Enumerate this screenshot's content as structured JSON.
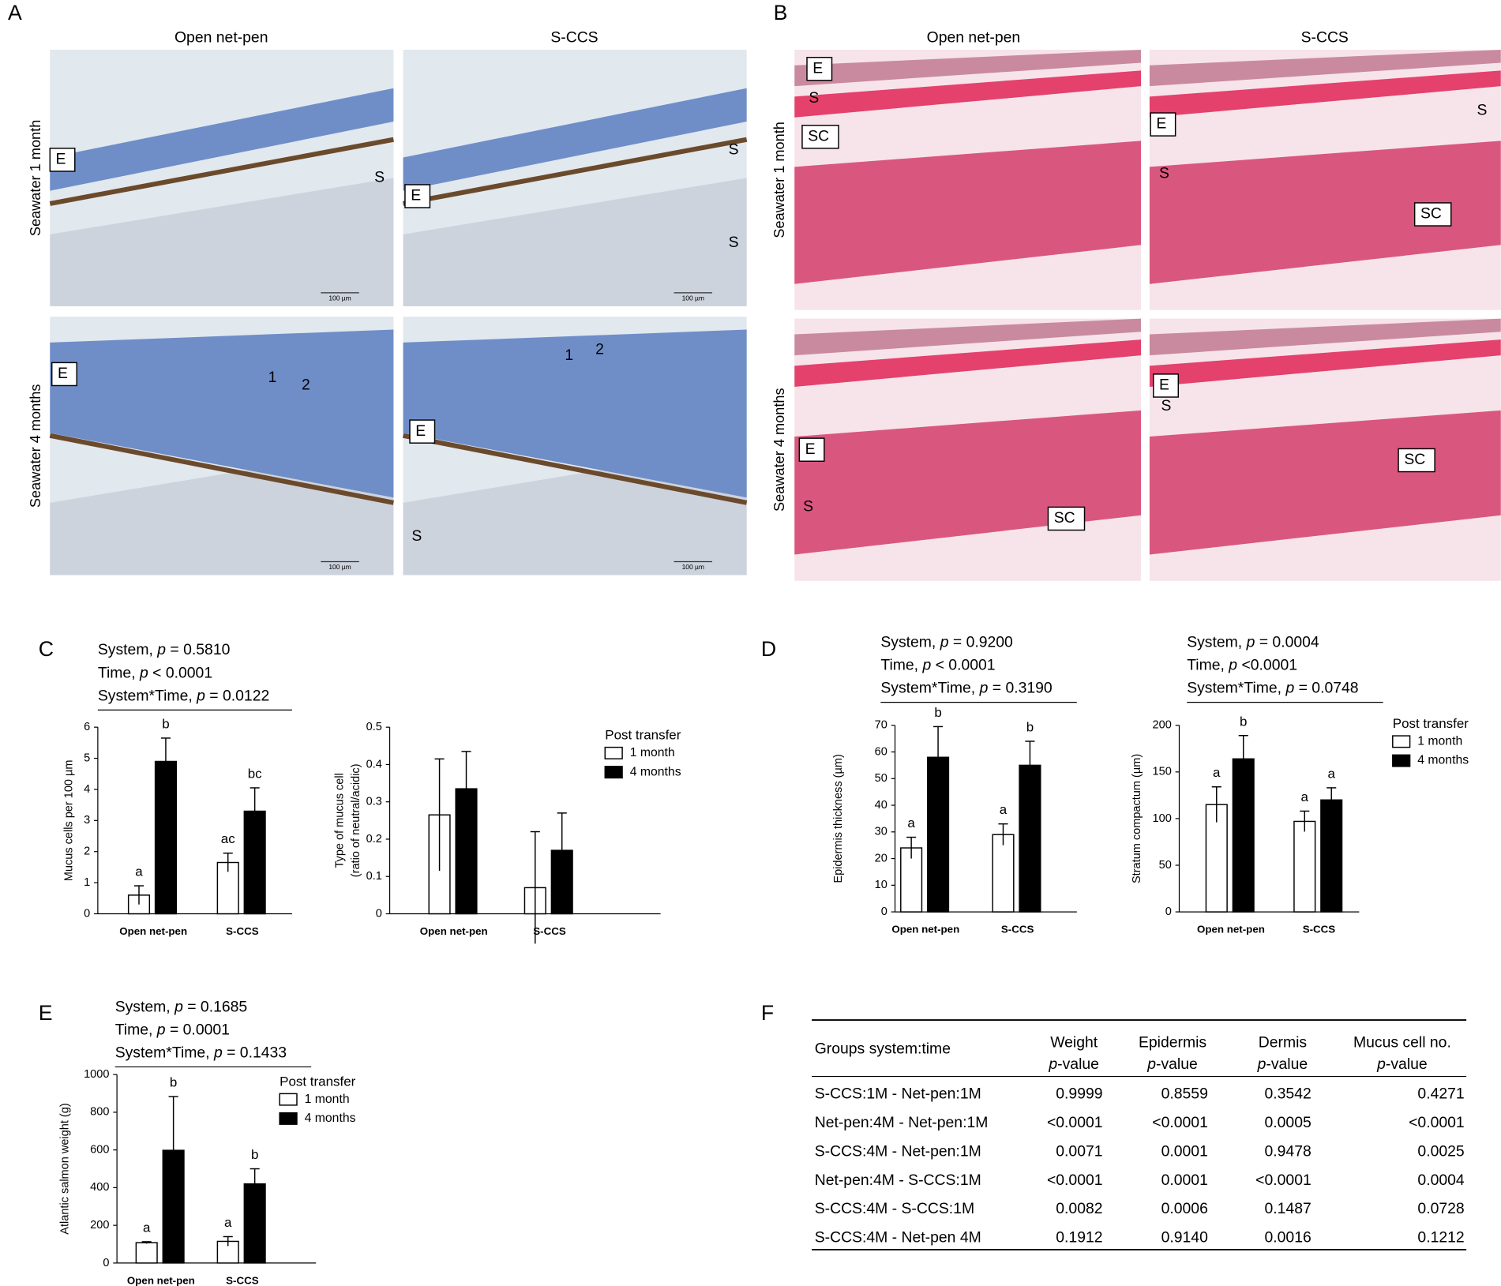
{
  "panel_labels": [
    "A",
    "B",
    "C",
    "D",
    "E",
    "F"
  ],
  "micrographs": {
    "A": {
      "columns": [
        "Open net-pen",
        "S-CCS"
      ],
      "rows": [
        "Seawater 1 month",
        "Seawater 4 months"
      ],
      "images": [
        {
          "labels": [
            "E",
            "S"
          ],
          "scale_bar": "100 µm"
        },
        {
          "labels": [
            "E",
            "S",
            "S"
          ],
          "scale_bar": "100 µm"
        },
        {
          "labels": [
            "E",
            "1",
            "2"
          ],
          "scale_bar": "100 µm"
        },
        {
          "labels": [
            "E",
            "1",
            "2",
            "S"
          ],
          "scale_bar": "100 µm"
        }
      ]
    },
    "B": {
      "columns": [
        "Open net-pen",
        "S-CCS"
      ],
      "rows": [
        "Seawater 1 month",
        "Seawater 4 months"
      ],
      "images": [
        {
          "labels": [
            "E",
            "S",
            "SC"
          ]
        },
        {
          "labels": [
            "E",
            "S",
            "S",
            "SC"
          ]
        },
        {
          "labels": [
            "E",
            "S",
            "SC"
          ]
        },
        {
          "labels": [
            "E",
            "S",
            "SC"
          ]
        }
      ]
    }
  },
  "chart_data": [
    {
      "type": "bar",
      "ylabel": [
        "Mucus cells per 100 µm"
      ],
      "categories": [
        "Open net-pen",
        "S-CCS"
      ],
      "stats": [
        {
          "pre": "System, ",
          "p": "p",
          "post": " = 0.5810"
        },
        {
          "pre": "Time, ",
          "p": "p",
          "post": " < 0.0001"
        },
        {
          "pre": "System*Time, ",
          "p": "p",
          "post": " = 0.0122"
        }
      ],
      "series": [
        {
          "color": "#ffffff",
          "values": [
            0.6,
            1.65
          ],
          "errors": [
            0.3,
            0.3
          ],
          "letters": [
            "a",
            "ac"
          ]
        },
        {
          "color": "#000000",
          "values": [
            4.9,
            3.3
          ],
          "errors": [
            0.75,
            0.75
          ],
          "letters": [
            "b",
            "bc"
          ]
        }
      ],
      "ylim": [
        0,
        6
      ],
      "yticks": [
        0,
        1,
        2,
        3,
        4,
        5,
        6
      ]
    },
    {
      "type": "bar",
      "ylabel": [
        "Type of mucus cell",
        "(ratio of neutral/acidic)"
      ],
      "categories": [
        "Open net-pen",
        "S-CCS"
      ],
      "legend_title": "Post transfer",
      "legend": "right",
      "series": [
        {
          "name": "1 month",
          "color": "#ffffff",
          "values": [
            0.265,
            0.07
          ],
          "errors": [
            0.15,
            0.15
          ]
        },
        {
          "name": "4 months",
          "color": "#000000",
          "values": [
            0.335,
            0.17
          ],
          "errors": [
            0.1,
            0.1
          ]
        }
      ],
      "ylim": [
        0,
        0.5
      ],
      "yticks": [
        0,
        0.1,
        0.2,
        0.3,
        0.4,
        0.5
      ]
    },
    {
      "type": "bar",
      "ylabel": [
        "Epidermis thickness  (µm)"
      ],
      "categories": [
        "Open net-pen",
        "S-CCS"
      ],
      "stats": [
        {
          "pre": "System, ",
          "p": "p",
          "post": " = 0.9200"
        },
        {
          "pre": "Time, ",
          "p": "p",
          "post": " < 0.0001"
        },
        {
          "pre": "System*Time, ",
          "p": "p",
          "post": " = 0.3190"
        }
      ],
      "series": [
        {
          "color": "#ffffff",
          "values": [
            24,
            29
          ],
          "errors": [
            4,
            4
          ],
          "letters": [
            "a",
            "a"
          ]
        },
        {
          "color": "#000000",
          "values": [
            58,
            55
          ],
          "errors": [
            11.5,
            9
          ],
          "letters": [
            "b",
            "b"
          ]
        }
      ],
      "ylim": [
        0,
        70
      ],
      "yticks": [
        0,
        10,
        20,
        30,
        40,
        50,
        60,
        70
      ]
    },
    {
      "type": "bar",
      "ylabel": [
        "Stratum compactum  (µm)"
      ],
      "categories": [
        "Open net-pen",
        "S-CCS"
      ],
      "stats": [
        {
          "pre": "System, ",
          "p": "p",
          "post": " = 0.0004"
        },
        {
          "pre": "Time, ",
          "p": "p",
          "post": " <0.0001"
        },
        {
          "pre": "System*Time, ",
          "p": "p",
          "post": " = 0.0748"
        }
      ],
      "legend_title": "Post transfer",
      "legend": "right",
      "series": [
        {
          "name": "1 month",
          "color": "#ffffff",
          "values": [
            115,
            97
          ],
          "errors": [
            19,
            11
          ],
          "letters": [
            "a",
            "a"
          ]
        },
        {
          "name": "4 months",
          "color": "#000000",
          "values": [
            164,
            120
          ],
          "errors": [
            25,
            13
          ],
          "letters": [
            "b",
            "a"
          ]
        }
      ],
      "ylim": [
        0,
        200
      ],
      "yticks": [
        0,
        50,
        100,
        150,
        200
      ]
    },
    {
      "type": "bar",
      "ylabel": [
        "Atlantic salmon weight  (g)"
      ],
      "categories": [
        "Open net-pen",
        "S-CCS"
      ],
      "stats": [
        {
          "pre": "System, ",
          "p": "p",
          "post": " = 0.1685"
        },
        {
          "pre": "Time, ",
          "p": "p",
          "post": " = 0.0001"
        },
        {
          "pre": "System*Time, ",
          "p": "p",
          "post": " = 0.1433"
        }
      ],
      "legend_title": "Post transfer",
      "legend": "right",
      "series": [
        {
          "name": "1 month",
          "color": "#ffffff",
          "values": [
            108,
            115
          ],
          "errors": [
            5,
            25
          ],
          "letters": [
            "a",
            "a"
          ]
        },
        {
          "name": "4 months",
          "color": "#000000",
          "values": [
            598,
            420
          ],
          "errors": [
            285,
            80
          ],
          "letters": [
            "b",
            "b"
          ]
        }
      ],
      "ylim": [
        0,
        1000
      ],
      "yticks": [
        0,
        200,
        400,
        600,
        800,
        1000
      ]
    }
  ],
  "table": {
    "columns": [
      {
        "title": "Groups system:time"
      },
      {
        "title": "Weight",
        "p": "p",
        "suffix": "-value"
      },
      {
        "title": "Epidermis",
        "p": "p",
        "suffix": "-value"
      },
      {
        "title": "Dermis",
        "p": "p",
        "suffix": "-value"
      },
      {
        "title": "Mucus cell no.",
        "p": "p",
        "suffix": "-value"
      }
    ],
    "rows": [
      [
        "S-CCS:1M - Net-pen:1M",
        "0.9999",
        "0.8559",
        "0.3542",
        "0.4271"
      ],
      [
        "Net-pen:4M - Net-pen:1M",
        "<0.0001",
        "<0.0001",
        "0.0005",
        "<0.0001"
      ],
      [
        "S-CCS:4M - Net-pen:1M",
        "0.0071",
        "0.0001",
        "0.9478",
        "0.0025"
      ],
      [
        "Net-pen:4M - S-CCS:1M",
        "<0.0001",
        "0.0001",
        "<0.0001",
        "0.0004"
      ],
      [
        "S-CCS:4M - S-CCS:1M",
        "0.0082",
        "0.0006",
        "0.1487",
        "0.0728"
      ],
      [
        "S-CCS:4M - Net-pen 4M",
        "0.1912",
        "0.9140",
        "0.0016",
        "0.1212"
      ]
    ]
  }
}
